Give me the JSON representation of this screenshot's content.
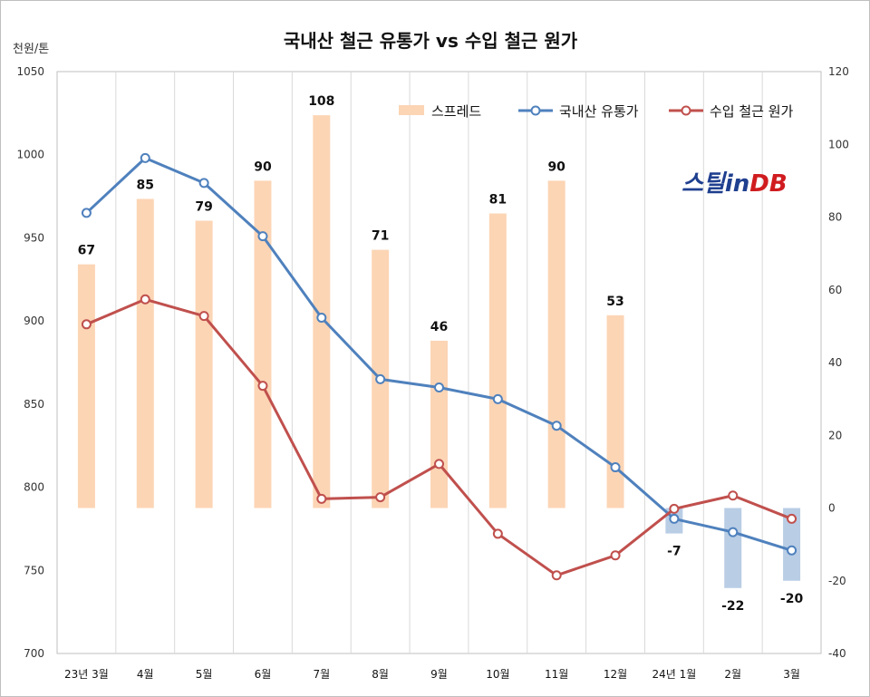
{
  "chart_data": {
    "type": "bar+line",
    "title": "국내산 철근 유통가 vs 수입 철근 원가",
    "left_unit": "천원/톤",
    "categories": [
      "23년 3월",
      "4월",
      "5월",
      "6월",
      "7월",
      "8월",
      "9월",
      "10월",
      "11월",
      "12월",
      "24년 1월",
      "2월",
      "3월"
    ],
    "left_axis": {
      "min": 700,
      "max": 1050,
      "step": 50,
      "ticks": [
        "700",
        "750",
        "800",
        "850",
        "900",
        "950",
        "1000",
        "1050"
      ]
    },
    "right_axis": {
      "min": -40,
      "max": 120,
      "step": 20,
      "ticks": [
        "-40",
        "-20",
        "0",
        "20",
        "40",
        "60",
        "80",
        "100",
        "120"
      ]
    },
    "series": [
      {
        "name": "스프레드",
        "kind": "bar",
        "axis": "right",
        "values": [
          67,
          85,
          79,
          90,
          108,
          71,
          46,
          81,
          90,
          53,
          -7,
          -22,
          -20
        ],
        "labels": [
          "67",
          "85",
          "79",
          "90",
          "108",
          "71",
          "46",
          "81",
          "90",
          "53",
          "-7",
          "-22",
          "-20"
        ],
        "color_positive": "#fcd5b5",
        "color_negative": "#b9cde5"
      },
      {
        "name": "국내산 유통가",
        "kind": "line",
        "axis": "left",
        "values": [
          965,
          998,
          983,
          951,
          902,
          865,
          860,
          853,
          837,
          812,
          781,
          773,
          762
        ],
        "color": "#4f81bd"
      },
      {
        "name": "수입 철근 원가",
        "kind": "line",
        "axis": "left",
        "values": [
          898,
          913,
          903,
          861,
          793,
          794,
          814,
          772,
          747,
          759,
          787,
          795,
          781
        ],
        "color": "#c0504d"
      }
    ],
    "legend_position": "top-right",
    "grid": "vertical"
  },
  "logo": {
    "part1": "스틸in",
    "part2": "DB"
  }
}
